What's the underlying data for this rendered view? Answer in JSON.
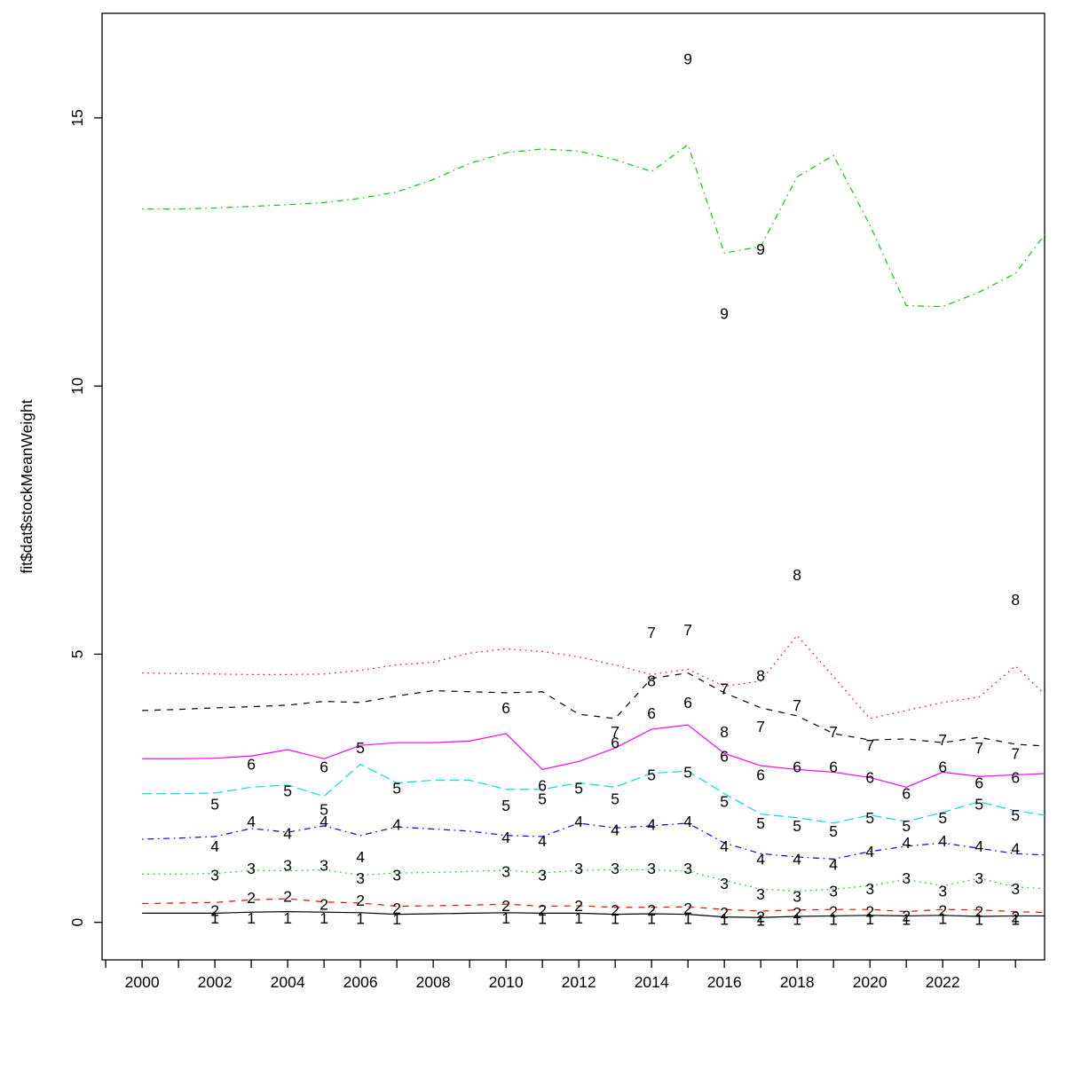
{
  "figure": {
    "background": "#ffffff",
    "axis_color": "#000000"
  },
  "chart_data": {
    "type": "line",
    "title": "",
    "xlabel": "",
    "ylabel": "fit$dat$stockMeanWeight",
    "xlim": [
      1998.9,
      2024.8
    ],
    "ylim": [
      -0.7,
      16.95
    ],
    "grid": "off",
    "legend": "none",
    "x_ticks_major": [
      2000,
      2002,
      2004,
      2006,
      2008,
      2010,
      2012,
      2014,
      2016,
      2018,
      2020,
      2022
    ],
    "x_ticks_minor": [
      1999,
      2000,
      2001,
      2002,
      2003,
      2004,
      2005,
      2006,
      2007,
      2008,
      2009,
      2010,
      2011,
      2012,
      2013,
      2014,
      2015,
      2016,
      2017,
      2018,
      2019,
      2020,
      2021,
      2022,
      2023,
      2024
    ],
    "y_ticks": [
      0,
      5,
      10,
      15
    ],
    "line_years": [
      2000,
      2001,
      2002,
      2003,
      2004,
      2005,
      2006,
      2007,
      2008,
      2009,
      2010,
      2011,
      2012,
      2013,
      2014,
      2015,
      2016,
      2017,
      2018,
      2019,
      2020,
      2021,
      2022,
      2023,
      2024,
      2025
    ],
    "series": [
      {
        "name": "age-1",
        "label": "1",
        "color": "#000000",
        "linetype": "solid",
        "line": [
          0.17,
          0.17,
          0.17,
          0.19,
          0.2,
          0.19,
          0.18,
          0.15,
          0.16,
          0.17,
          0.18,
          0.17,
          0.17,
          0.15,
          0.16,
          0.15,
          0.1,
          0.09,
          0.11,
          0.12,
          0.13,
          0.12,
          0.13,
          0.11,
          0.12,
          0.12
        ],
        "obs_pairs": [
          [
            2002,
            0.08
          ],
          [
            2003,
            0.08
          ],
          [
            2004,
            0.08
          ],
          [
            2005,
            0.08
          ],
          [
            2006,
            0.07
          ],
          [
            2007,
            0.06
          ],
          [
            2010,
            0.08
          ],
          [
            2011,
            0.07
          ],
          [
            2012,
            0.08
          ],
          [
            2013,
            0.07
          ],
          [
            2014,
            0.07
          ],
          [
            2015,
            0.07
          ],
          [
            2016,
            0.05
          ],
          [
            2017,
            0.04
          ],
          [
            2018,
            0.05
          ],
          [
            2019,
            0.05
          ],
          [
            2020,
            0.06
          ],
          [
            2021,
            0.05
          ],
          [
            2022,
            0.07
          ],
          [
            2023,
            0.05
          ],
          [
            2024,
            0.05
          ]
        ]
      },
      {
        "name": "age-2",
        "label": "2",
        "color": "#ff0000",
        "linetype": "dashed",
        "line": [
          0.35,
          0.36,
          0.37,
          0.42,
          0.44,
          0.38,
          0.36,
          0.3,
          0.31,
          0.32,
          0.34,
          0.3,
          0.31,
          0.28,
          0.28,
          0.29,
          0.24,
          0.21,
          0.23,
          0.24,
          0.24,
          0.2,
          0.24,
          0.23,
          0.2,
          0.18
        ],
        "obs_pairs": [
          [
            2002,
            0.22
          ],
          [
            2003,
            0.46
          ],
          [
            2004,
            0.48
          ],
          [
            2005,
            0.33
          ],
          [
            2006,
            0.41
          ],
          [
            2007,
            0.26
          ],
          [
            2010,
            0.31
          ],
          [
            2011,
            0.23
          ],
          [
            2012,
            0.31
          ],
          [
            2013,
            0.23
          ],
          [
            2014,
            0.23
          ],
          [
            2015,
            0.26
          ],
          [
            2016,
            0.18
          ],
          [
            2017,
            0.1
          ],
          [
            2018,
            0.18
          ],
          [
            2019,
            0.2
          ],
          [
            2020,
            0.2
          ],
          [
            2021,
            0.12
          ],
          [
            2022,
            0.22
          ],
          [
            2023,
            0.2
          ],
          [
            2024,
            0.1
          ]
        ]
      },
      {
        "name": "age-3",
        "label": "3",
        "color": "#00cd00",
        "linetype": "dotted",
        "line": [
          0.9,
          0.9,
          0.91,
          0.97,
          0.96,
          0.98,
          0.88,
          0.92,
          0.93,
          0.95,
          0.97,
          0.92,
          0.97,
          0.98,
          0.98,
          0.95,
          0.78,
          0.62,
          0.58,
          0.62,
          0.68,
          0.8,
          0.68,
          0.82,
          0.66,
          0.62
        ],
        "obs_pairs": [
          [
            2002,
            0.88
          ],
          [
            2003,
            1.0
          ],
          [
            2004,
            1.06
          ],
          [
            2005,
            1.06
          ],
          [
            2006,
            0.82
          ],
          [
            2007,
            0.88
          ],
          [
            2010,
            0.95
          ],
          [
            2011,
            0.88
          ],
          [
            2012,
            1.0
          ],
          [
            2013,
            1.0
          ],
          [
            2014,
            1.0
          ],
          [
            2015,
            1.0
          ],
          [
            2016,
            0.72
          ],
          [
            2017,
            0.52
          ],
          [
            2018,
            0.48
          ],
          [
            2019,
            0.58
          ],
          [
            2020,
            0.62
          ],
          [
            2021,
            0.82
          ],
          [
            2022,
            0.58
          ],
          [
            2023,
            0.82
          ],
          [
            2024,
            0.62
          ]
        ]
      },
      {
        "name": "age-4",
        "label": "4",
        "color": "#0000ff",
        "linetype": "dotdash",
        "line": [
          1.55,
          1.57,
          1.6,
          1.75,
          1.68,
          1.8,
          1.62,
          1.78,
          1.74,
          1.7,
          1.62,
          1.6,
          1.85,
          1.76,
          1.8,
          1.85,
          1.48,
          1.28,
          1.22,
          1.18,
          1.32,
          1.42,
          1.48,
          1.38,
          1.28,
          1.25
        ],
        "obs_pairs": [
          [
            2002,
            1.42
          ],
          [
            2003,
            1.88
          ],
          [
            2004,
            1.66
          ],
          [
            2005,
            1.88
          ],
          [
            2006,
            1.22
          ],
          [
            2007,
            1.82
          ],
          [
            2010,
            1.58
          ],
          [
            2011,
            1.52
          ],
          [
            2012,
            1.88
          ],
          [
            2013,
            1.72
          ],
          [
            2014,
            1.82
          ],
          [
            2015,
            1.88
          ],
          [
            2016,
            1.42
          ],
          [
            2017,
            1.18
          ],
          [
            2018,
            1.18
          ],
          [
            2019,
            1.08
          ],
          [
            2020,
            1.32
          ],
          [
            2021,
            1.48
          ],
          [
            2022,
            1.52
          ],
          [
            2023,
            1.42
          ],
          [
            2024,
            1.38
          ]
        ]
      },
      {
        "name": "age-5",
        "label": "5",
        "color": "#00e0e0",
        "linetype": "longdash",
        "line": [
          2.4,
          2.4,
          2.41,
          2.52,
          2.56,
          2.35,
          2.95,
          2.6,
          2.65,
          2.65,
          2.48,
          2.48,
          2.6,
          2.52,
          2.78,
          2.82,
          2.4,
          2.02,
          1.95,
          1.85,
          2.0,
          1.88,
          2.05,
          2.25,
          2.08,
          1.98
        ],
        "obs_pairs": [
          [
            2002,
            2.2
          ],
          [
            2004,
            2.45
          ],
          [
            2005,
            2.1
          ],
          [
            2006,
            3.25
          ],
          [
            2007,
            2.5
          ],
          [
            2010,
            2.18
          ],
          [
            2011,
            2.3
          ],
          [
            2012,
            2.5
          ],
          [
            2013,
            2.3
          ],
          [
            2014,
            2.75
          ],
          [
            2015,
            2.8
          ],
          [
            2016,
            2.25
          ],
          [
            2017,
            1.85
          ],
          [
            2018,
            1.8
          ],
          [
            2019,
            1.7
          ],
          [
            2020,
            1.95
          ],
          [
            2021,
            1.8
          ],
          [
            2022,
            1.95
          ],
          [
            2023,
            2.2
          ],
          [
            2024,
            2.0
          ]
        ]
      },
      {
        "name": "age-6",
        "label": "6",
        "color": "#ff00ff",
        "linetype": "solid",
        "line": [
          3.05,
          3.05,
          3.06,
          3.1,
          3.22,
          3.05,
          3.3,
          3.35,
          3.35,
          3.38,
          3.52,
          2.85,
          3.0,
          3.25,
          3.6,
          3.68,
          3.15,
          2.92,
          2.85,
          2.8,
          2.7,
          2.52,
          2.8,
          2.72,
          2.75,
          2.78
        ],
        "obs_pairs": [
          [
            2003,
            2.95
          ],
          [
            2005,
            2.9
          ],
          [
            2010,
            4.0
          ],
          [
            2011,
            2.55
          ],
          [
            2013,
            3.35
          ],
          [
            2014,
            3.9
          ],
          [
            2015,
            4.1
          ],
          [
            2016,
            3.1
          ],
          [
            2017,
            2.75
          ],
          [
            2018,
            2.9
          ],
          [
            2019,
            2.9
          ],
          [
            2020,
            2.7
          ],
          [
            2021,
            2.4
          ],
          [
            2022,
            2.9
          ],
          [
            2023,
            2.6
          ],
          [
            2024,
            2.7
          ]
        ]
      },
      {
        "name": "age-7",
        "label": "7",
        "color": "#000000",
        "linetype": "dashed",
        "line": [
          3.95,
          3.97,
          4.0,
          4.02,
          4.05,
          4.12,
          4.1,
          4.22,
          4.32,
          4.3,
          4.28,
          4.3,
          3.88,
          3.8,
          4.55,
          4.65,
          4.28,
          4.0,
          3.85,
          3.52,
          3.4,
          3.42,
          3.35,
          3.45,
          3.32,
          3.28
        ],
        "obs_pairs": [
          [
            2013,
            3.55
          ],
          [
            2014,
            5.4
          ],
          [
            2015,
            5.45
          ],
          [
            2016,
            4.35
          ],
          [
            2017,
            3.65
          ],
          [
            2018,
            4.05
          ],
          [
            2019,
            3.55
          ],
          [
            2020,
            3.3
          ],
          [
            2022,
            3.4
          ],
          [
            2023,
            3.25
          ],
          [
            2024,
            3.15
          ]
        ]
      },
      {
        "name": "age-8",
        "label": "8",
        "color": "#ff0000",
        "linetype": "dotted",
        "line": [
          4.65,
          4.64,
          4.63,
          4.62,
          4.62,
          4.63,
          4.7,
          4.8,
          4.85,
          5.02,
          5.1,
          5.05,
          4.95,
          4.8,
          4.62,
          4.72,
          4.4,
          4.5,
          5.35,
          4.58,
          3.8,
          3.95,
          4.1,
          4.2,
          4.78,
          4.12
        ],
        "obs_pairs": [
          [
            2014,
            4.5
          ],
          [
            2016,
            3.55
          ],
          [
            2017,
            4.6
          ],
          [
            2018,
            6.48
          ],
          [
            2024,
            6.02
          ]
        ]
      },
      {
        "name": "age-9",
        "label": "9",
        "color": "#00cd00",
        "linetype": "dotdash",
        "line": [
          13.3,
          13.3,
          13.32,
          13.35,
          13.38,
          13.42,
          13.5,
          13.62,
          13.85,
          14.15,
          14.35,
          14.42,
          14.38,
          14.22,
          14.0,
          14.5,
          12.48,
          12.6,
          13.9,
          14.3,
          13.0,
          11.5,
          11.48,
          11.75,
          12.1,
          13.0
        ],
        "obs_pairs": [
          [
            2015,
            16.1
          ],
          [
            2016,
            11.35
          ],
          [
            2017,
            12.55
          ]
        ]
      }
    ]
  }
}
